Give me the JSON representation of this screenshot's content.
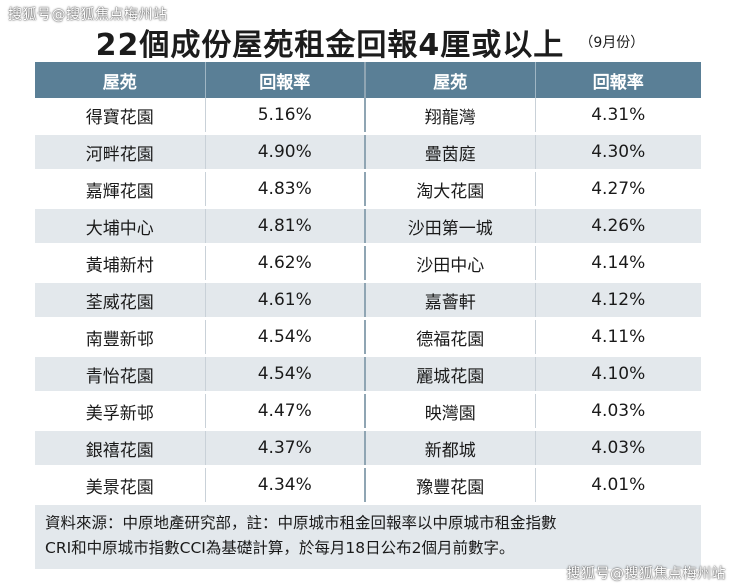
{
  "watermark": {
    "top": "搜狐号@搜狐焦点梅州站",
    "bottom": "搜狐号@搜狐焦点梅州站"
  },
  "title": "22個成份屋苑租金回報4厘或以上",
  "title_note": "（9月份）",
  "headers": {
    "estate": "屋苑",
    "yield": "回報率"
  },
  "rows": [
    {
      "left_estate": "得寶花園",
      "left_yield": "5.16%",
      "right_estate": "翔龍灣",
      "right_yield": "4.31%"
    },
    {
      "left_estate": "河畔花園",
      "left_yield": "4.90%",
      "right_estate": "疊茵庭",
      "right_yield": "4.30%"
    },
    {
      "left_estate": "嘉輝花園",
      "left_yield": "4.83%",
      "right_estate": "淘大花園",
      "right_yield": "4.27%"
    },
    {
      "left_estate": "大埔中心",
      "left_yield": "4.81%",
      "right_estate": "沙田第一城",
      "right_yield": "4.26%"
    },
    {
      "left_estate": "黃埔新村",
      "left_yield": "4.62%",
      "right_estate": "沙田中心",
      "right_yield": "4.14%"
    },
    {
      "left_estate": "荃威花園",
      "left_yield": "4.61%",
      "right_estate": "嘉薈軒",
      "right_yield": "4.12%"
    },
    {
      "left_estate": "南豐新邨",
      "left_yield": "4.54%",
      "right_estate": "德福花園",
      "right_yield": "4.11%"
    },
    {
      "left_estate": "青怡花園",
      "left_yield": "4.54%",
      "right_estate": "麗城花園",
      "right_yield": "4.10%"
    },
    {
      "left_estate": "美孚新邨",
      "left_yield": "4.47%",
      "right_estate": "映灣園",
      "right_yield": "4.03%"
    },
    {
      "left_estate": "銀禧花園",
      "left_yield": "4.37%",
      "right_estate": "新都城",
      "right_yield": "4.03%"
    },
    {
      "left_estate": "美景花園",
      "left_yield": "4.34%",
      "right_estate": "豫豐花園",
      "right_yield": "4.01%"
    }
  ],
  "footnote": {
    "line1": "資料來源：中原地產研究部，註：中原城市租金回報率以中原城市租金指數",
    "line2": "CRI和中原城市指數CCI為基礎計算，於每月18日公布2個月前數字。"
  },
  "colors": {
    "header_bg": "#5a7f96",
    "stripe_bg": "#e3e8ec"
  }
}
